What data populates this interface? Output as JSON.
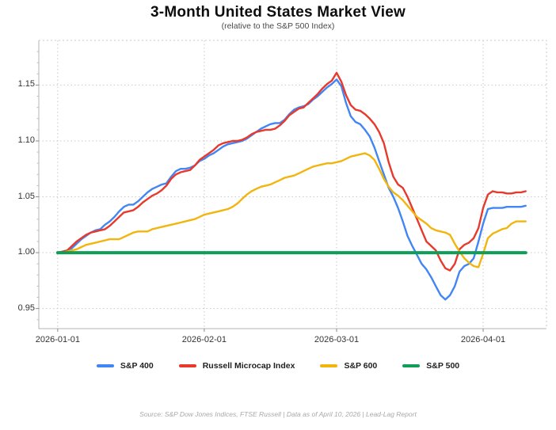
{
  "header": {
    "title": "3-Month United States Market View",
    "subtitle": "(relative to the S&P 500 Index)"
  },
  "footer": {
    "source_line": "Source: S&P Dow Jones Indices, FTSE Russell  |  Data as of April 10, 2026  |  Lead-Lag Report"
  },
  "chart_data": {
    "type": "line",
    "title": "3-Month United States Market View",
    "subtitle": "(relative to the S&P 500 Index)",
    "xlabel": "",
    "ylabel": "",
    "grid": "dotted",
    "legend_position": "bottom-center",
    "x_axis": {
      "unit": "days since 2026-01-01",
      "range_days": [
        -4,
        103.4
      ],
      "tick_days": [
        0,
        31,
        59,
        90
      ],
      "tick_labels": [
        "2026-01-01",
        "2026-02-01",
        "2026-03-01",
        "2026-04-01"
      ]
    },
    "y_axis": {
      "range": [
        0.932,
        1.19
      ],
      "ticks": [
        0.95,
        1.0,
        1.05,
        1.1,
        1.15
      ],
      "tick_labels": [
        "0.95",
        "1.00",
        "1.05",
        "1.10",
        "1.15"
      ],
      "minor_tick_step": 0.01
    },
    "series": [
      {
        "name": "S&P 400",
        "id": "sp400",
        "color": "#4285F4",
        "width": 2.4,
        "values": [
          1.0,
          1.0,
          1.001,
          1.004,
          1.008,
          1.012,
          1.015,
          1.018,
          1.02,
          1.021,
          1.025,
          1.028,
          1.032,
          1.037,
          1.041,
          1.043,
          1.043,
          1.046,
          1.05,
          1.054,
          1.057,
          1.059,
          1.061,
          1.062,
          1.068,
          1.073,
          1.075,
          1.075,
          1.076,
          1.078,
          1.082,
          1.084,
          1.087,
          1.089,
          1.092,
          1.095,
          1.097,
          1.098,
          1.099,
          1.1,
          1.102,
          1.105,
          1.108,
          1.111,
          1.113,
          1.115,
          1.116,
          1.116,
          1.119,
          1.124,
          1.128,
          1.13,
          1.131,
          1.133,
          1.137,
          1.14,
          1.144,
          1.148,
          1.151,
          1.155,
          1.149,
          1.134,
          1.122,
          1.117,
          1.115,
          1.11,
          1.104,
          1.094,
          1.082,
          1.07,
          1.058,
          1.05,
          1.04,
          1.028,
          1.015,
          1.006,
          0.998,
          0.99,
          0.985,
          0.978,
          0.97,
          0.962,
          0.958,
          0.962,
          0.97,
          0.983,
          0.988,
          0.99,
          0.995,
          1.01,
          1.026,
          1.039,
          1.04,
          1.04,
          1.04,
          1.041,
          1.041,
          1.041,
          1.041,
          1.042
        ]
      },
      {
        "name": "Russell Microcap Index",
        "id": "russell-microcap",
        "color": "#E8392D",
        "width": 2.4,
        "values": [
          1.0,
          1.001,
          1.002,
          1.006,
          1.01,
          1.013,
          1.016,
          1.018,
          1.019,
          1.02,
          1.021,
          1.024,
          1.028,
          1.032,
          1.036,
          1.037,
          1.038,
          1.041,
          1.045,
          1.048,
          1.051,
          1.053,
          1.056,
          1.06,
          1.066,
          1.07,
          1.072,
          1.073,
          1.074,
          1.078,
          1.083,
          1.086,
          1.089,
          1.092,
          1.096,
          1.098,
          1.099,
          1.1,
          1.1,
          1.101,
          1.103,
          1.106,
          1.108,
          1.109,
          1.11,
          1.11,
          1.111,
          1.114,
          1.118,
          1.123,
          1.126,
          1.129,
          1.13,
          1.134,
          1.138,
          1.142,
          1.147,
          1.151,
          1.154,
          1.161,
          1.153,
          1.141,
          1.132,
          1.128,
          1.127,
          1.124,
          1.12,
          1.115,
          1.108,
          1.098,
          1.081,
          1.068,
          1.061,
          1.058,
          1.05,
          1.04,
          1.03,
          1.02,
          1.01,
          1.006,
          1.002,
          0.993,
          0.986,
          0.984,
          0.99,
          1.003,
          1.007,
          1.009,
          1.013,
          1.022,
          1.04,
          1.052,
          1.055,
          1.054,
          1.054,
          1.053,
          1.053,
          1.054,
          1.054,
          1.055
        ]
      },
      {
        "name": "S&P 600",
        "id": "sp600",
        "color": "#F2B50E",
        "width": 2.4,
        "values": [
          1.0,
          1.0,
          1.001,
          1.002,
          1.003,
          1.005,
          1.007,
          1.008,
          1.009,
          1.01,
          1.011,
          1.012,
          1.012,
          1.012,
          1.014,
          1.016,
          1.018,
          1.019,
          1.019,
          1.019,
          1.021,
          1.022,
          1.023,
          1.024,
          1.025,
          1.026,
          1.027,
          1.028,
          1.029,
          1.03,
          1.032,
          1.034,
          1.035,
          1.036,
          1.037,
          1.038,
          1.039,
          1.041,
          1.044,
          1.048,
          1.052,
          1.055,
          1.057,
          1.059,
          1.06,
          1.061,
          1.063,
          1.065,
          1.067,
          1.068,
          1.069,
          1.071,
          1.073,
          1.075,
          1.077,
          1.078,
          1.079,
          1.08,
          1.08,
          1.081,
          1.082,
          1.084,
          1.086,
          1.087,
          1.088,
          1.089,
          1.087,
          1.083,
          1.075,
          1.066,
          1.059,
          1.054,
          1.051,
          1.047,
          1.042,
          1.037,
          1.032,
          1.029,
          1.026,
          1.022,
          1.02,
          1.019,
          1.018,
          1.016,
          1.008,
          1.001,
          0.995,
          0.991,
          0.988,
          0.987,
          0.999,
          1.013,
          1.017,
          1.019,
          1.021,
          1.022,
          1.026,
          1.028,
          1.028,
          1.028
        ]
      },
      {
        "name": "S&P 500",
        "id": "sp500",
        "color": "#0F9D58",
        "width": 4,
        "constant_value": 1.0,
        "span_days": [
          0,
          99
        ]
      }
    ]
  }
}
